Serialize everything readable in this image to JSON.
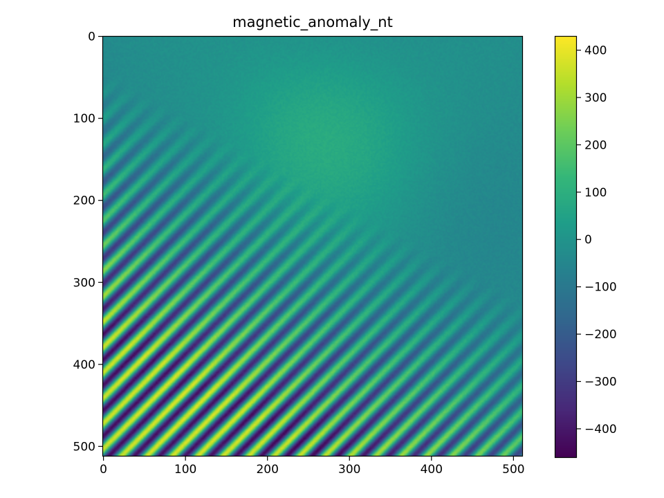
{
  "chart_data": {
    "type": "heatmap",
    "title": "magnetic_anomaly_nt",
    "xlabel": "",
    "ylabel": "",
    "x_range": [
      0,
      511
    ],
    "y_range": [
      0,
      511
    ],
    "y_axis_inverted": true,
    "x_ticks": [
      0,
      100,
      200,
      300,
      400,
      500
    ],
    "y_ticks": [
      0,
      100,
      200,
      300,
      400,
      500
    ],
    "grid": false,
    "colormap": "viridis",
    "colorbar": {
      "range": [
        -460,
        430
      ],
      "ticks": [
        400,
        300,
        200,
        100,
        0,
        -100,
        -200,
        -300,
        -400
      ],
      "tick_labels": [
        "400",
        "300",
        "200",
        "100",
        "0",
        "−100",
        "−200",
        "−300",
        "−400"
      ]
    },
    "field_description": {
      "stripe_orientation": "diagonal, rising from lower-left to upper-right",
      "stripe_amplitude_increases_toward": "lower-left",
      "quiet_region": "upper-right",
      "background_anomaly_peak": {
        "x": 270,
        "y": 120,
        "value": 120
      }
    },
    "colors": {
      "viridis": [
        "#440154",
        "#482878",
        "#3e4989",
        "#31688e",
        "#26828e",
        "#1f9e89",
        "#35b779",
        "#6ece58",
        "#b5de2b",
        "#fde725"
      ]
    }
  }
}
